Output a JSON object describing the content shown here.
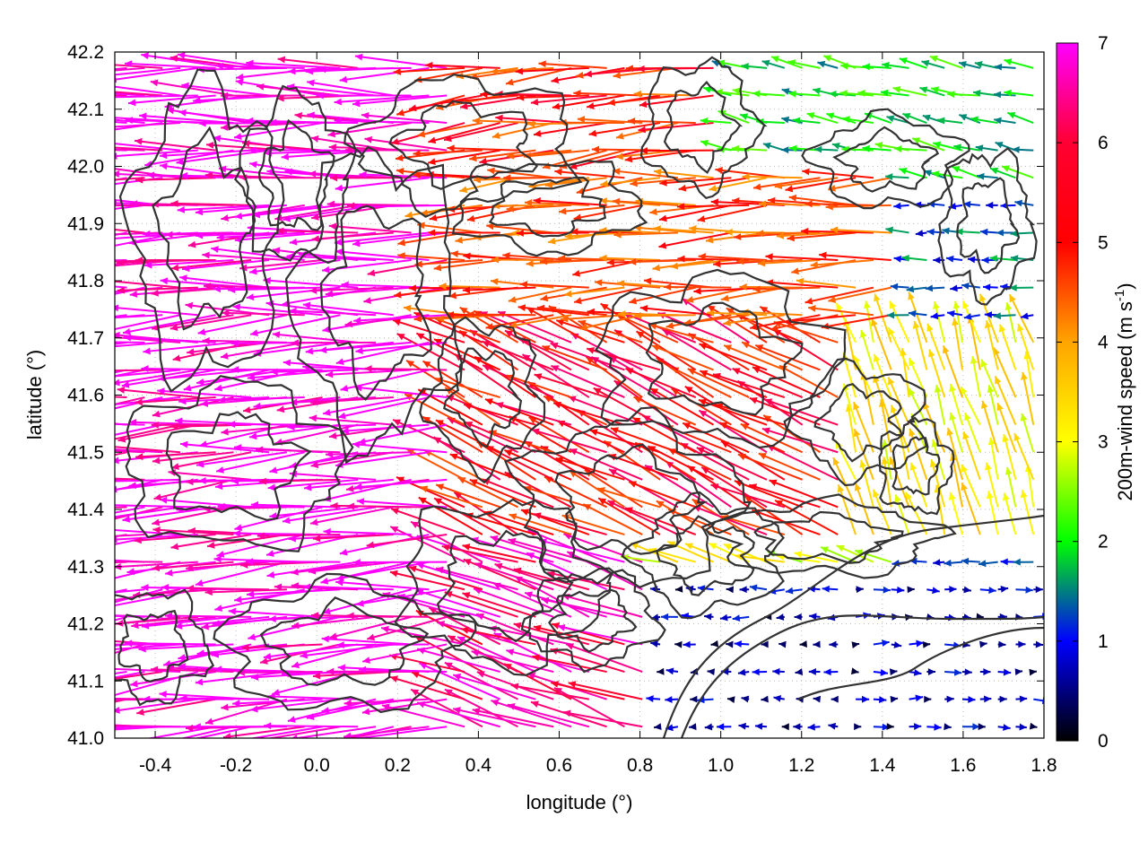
{
  "chart_data": {
    "type": "vector-field",
    "xlabel": "longitude (°)",
    "ylabel": "latitude (°)",
    "colorbar_label_base": "200m-wind speed (m s",
    "colorbar_label_exp": "-1",
    "colorbar_label_close": ")",
    "xlim": [
      -0.5,
      1.8
    ],
    "ylim": [
      41.0,
      42.2
    ],
    "xticks": [
      -0.4,
      -0.2,
      0.0,
      0.2,
      0.4,
      0.6,
      0.8,
      1.0,
      1.2,
      1.4,
      1.6,
      1.8
    ],
    "xtick_labels": [
      "-0.4",
      "-0.2",
      "0.0",
      "0.2",
      "0.4",
      "0.6",
      "0.8",
      "1.0",
      "1.2",
      "1.4",
      "1.6",
      "1.8"
    ],
    "yticks": [
      41.0,
      41.1,
      41.2,
      41.3,
      41.4,
      41.5,
      41.6,
      41.7,
      41.8,
      41.9,
      42.0,
      42.1,
      42.2
    ],
    "ytick_labels": [
      "41.0",
      "41.1",
      "41.2",
      "41.3",
      "41.4",
      "41.5",
      "41.6",
      "41.7",
      "41.8",
      "41.9",
      "42.0",
      "42.1",
      "42.2"
    ],
    "colorbar_range": [
      0,
      7
    ],
    "colorbar_ticks": [
      0,
      1,
      2,
      3,
      4,
      5,
      6,
      7
    ],
    "colorbar_tick_labels": [
      "0",
      "1",
      "2",
      "3",
      "4",
      "5",
      "6",
      "7"
    ],
    "colormap": [
      "#000000",
      "#0000ff",
      "#00ff00",
      "#ffff00",
      "#ffa500",
      "#ff0000",
      "#ff00ff"
    ],
    "grid": true,
    "contour_color": "#333333",
    "vector_grid_step_deg": 0.08,
    "vector_field_regions": [
      {
        "region": "west (lon < 0.4)",
        "direction": "westward",
        "speed_ms": 7
      },
      {
        "region": "central band lat 41.7-42.0",
        "direction": "westward",
        "speed_ms": 5.5
      },
      {
        "region": "central lat 41.4-41.6",
        "direction": "north-westward",
        "speed_ms": 6
      },
      {
        "region": "east lat 41.8-42.2",
        "direction": "westward",
        "speed_ms": 2
      },
      {
        "region": "south-east lat 41.0-41.3",
        "direction": "eastward/variable",
        "speed_ms": 0.8
      }
    ]
  }
}
